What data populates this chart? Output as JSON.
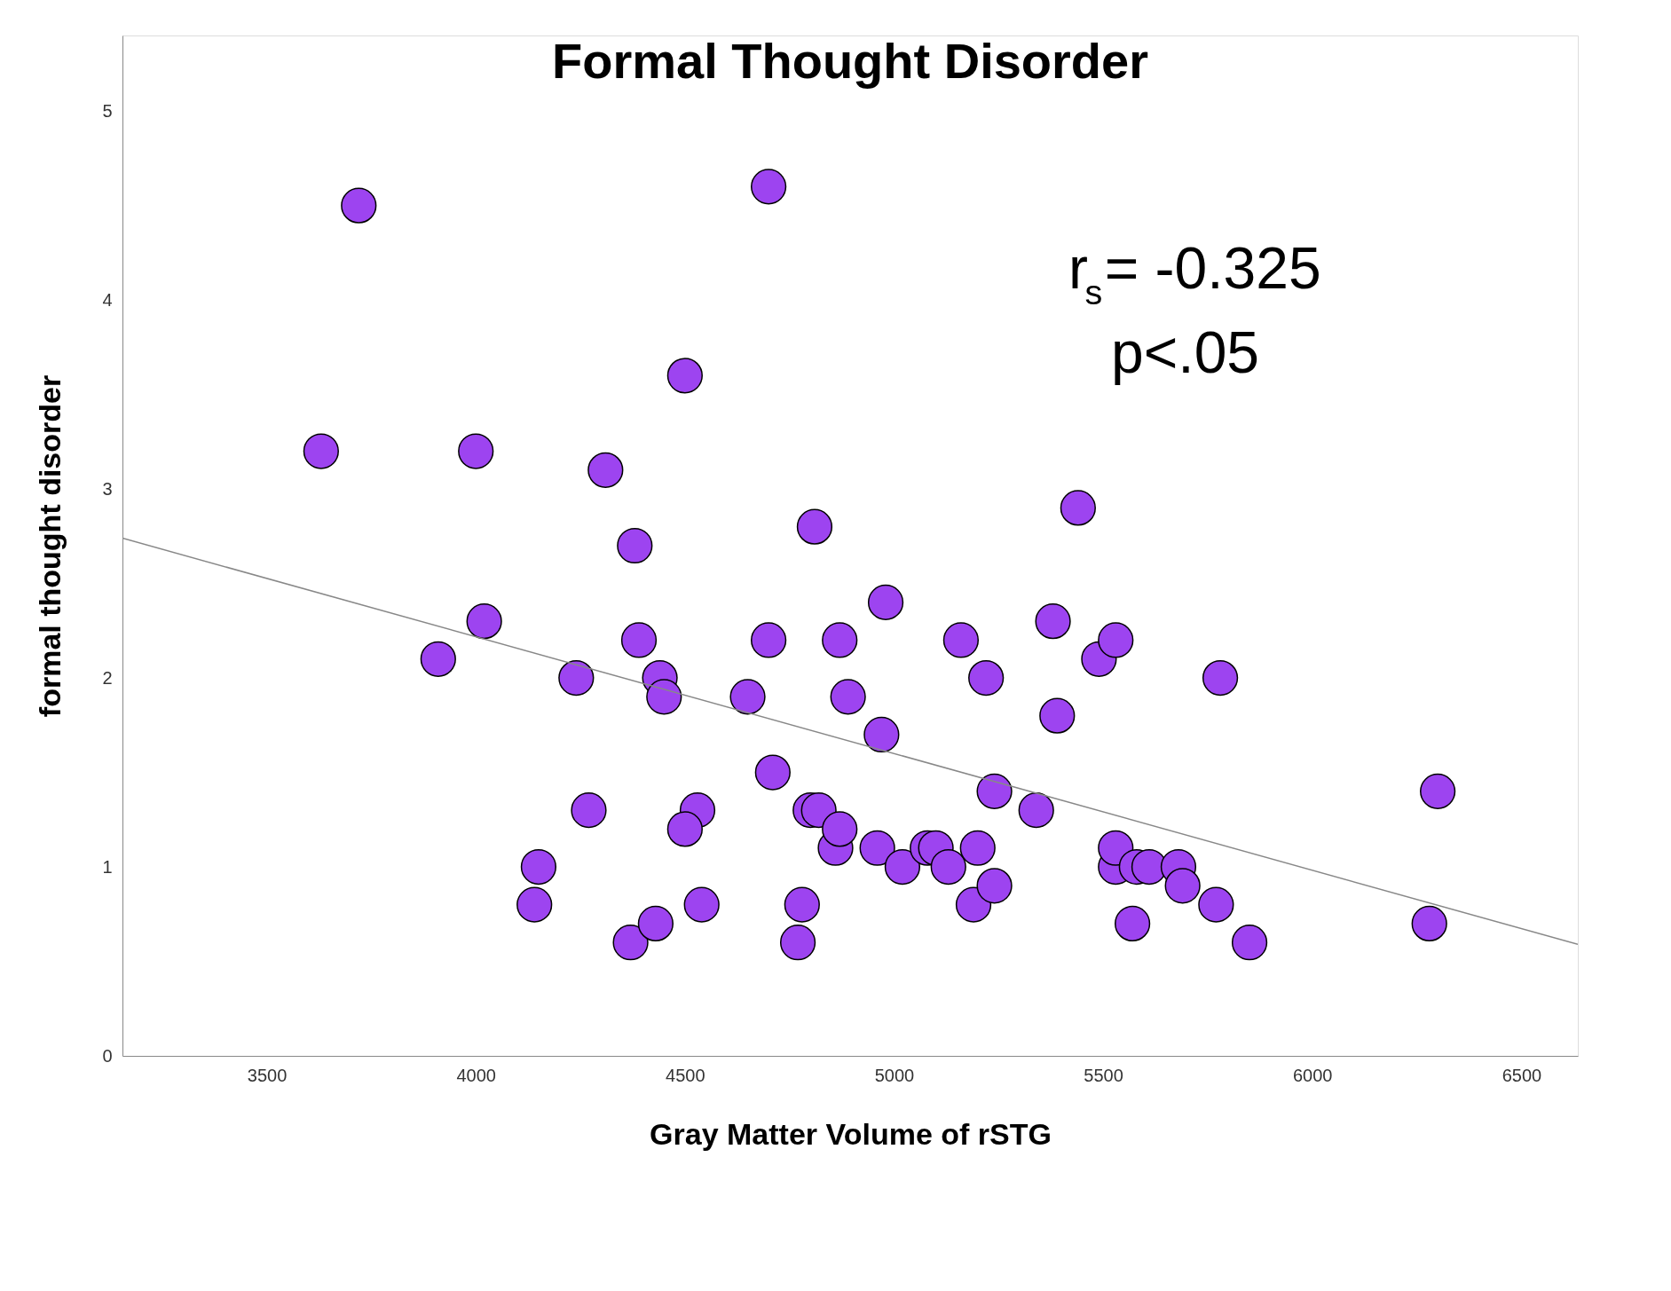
{
  "chart_data": {
    "type": "scatter",
    "title": "Formal Thought Disorder",
    "xlabel": "Gray Matter Volume of rSTG",
    "ylabel": "formal thought disorder",
    "annotations": [
      "r$_{s}$= -0.325",
      "p<.05"
    ],
    "xlim": [
      3155,
      6635
    ],
    "xticks": [
      3500,
      4000,
      4500,
      5000,
      5500,
      6000,
      6500
    ],
    "ylim": [
      0,
      5.4
    ],
    "yticks": [
      0,
      1,
      2,
      3,
      4,
      5
    ],
    "grid": false,
    "series": [
      {
        "color": "#9d44f0",
        "marker": "circle",
        "x": [
          3720,
          3630,
          4000,
          3910,
          4020,
          4700,
          4500,
          4310,
          4380,
          4390,
          4240,
          4440,
          4450,
          4650,
          4700,
          4810,
          4870,
          4890,
          4980,
          4970,
          4710,
          4270,
          4530,
          4500,
          4150,
          4140,
          4370,
          4430,
          4540,
          4770,
          4780,
          4800,
          4820,
          4860,
          4870,
          4960,
          5020,
          5080,
          5100,
          5130,
          5160,
          5220,
          5200,
          5190,
          5240,
          5240,
          5340,
          5380,
          5390,
          5440,
          5490,
          5530,
          5530,
          5530,
          5580,
          5570,
          5610,
          5680,
          5690,
          5770,
          5780,
          5850,
          6300,
          6280
        ],
        "values": [
          4.5,
          3.2,
          3.2,
          2.1,
          2.3,
          4.6,
          3.6,
          3.1,
          2.7,
          2.2,
          2.0,
          2.0,
          1.9,
          1.9,
          2.2,
          2.8,
          2.2,
          1.9,
          2.4,
          1.7,
          1.5,
          1.3,
          1.3,
          1.2,
          1.0,
          0.8,
          0.6,
          0.7,
          0.8,
          0.6,
          0.8,
          1.3,
          1.3,
          1.1,
          1.2,
          1.1,
          1.0,
          1.1,
          1.1,
          1.0,
          2.2,
          2.0,
          1.1,
          0.8,
          0.9,
          1.4,
          1.3,
          2.3,
          1.8,
          2.9,
          2.1,
          2.2,
          1.0,
          1.1,
          1.0,
          0.7,
          1.0,
          1.0,
          0.9,
          0.8,
          2.0,
          0.6,
          1.4,
          0.7
        ]
      },
      {
        "type": "line",
        "color": "#888888",
        "marker": "none",
        "x": [
          3155,
          6635
        ],
        "values": [
          2.74,
          0.59
        ]
      }
    ]
  }
}
